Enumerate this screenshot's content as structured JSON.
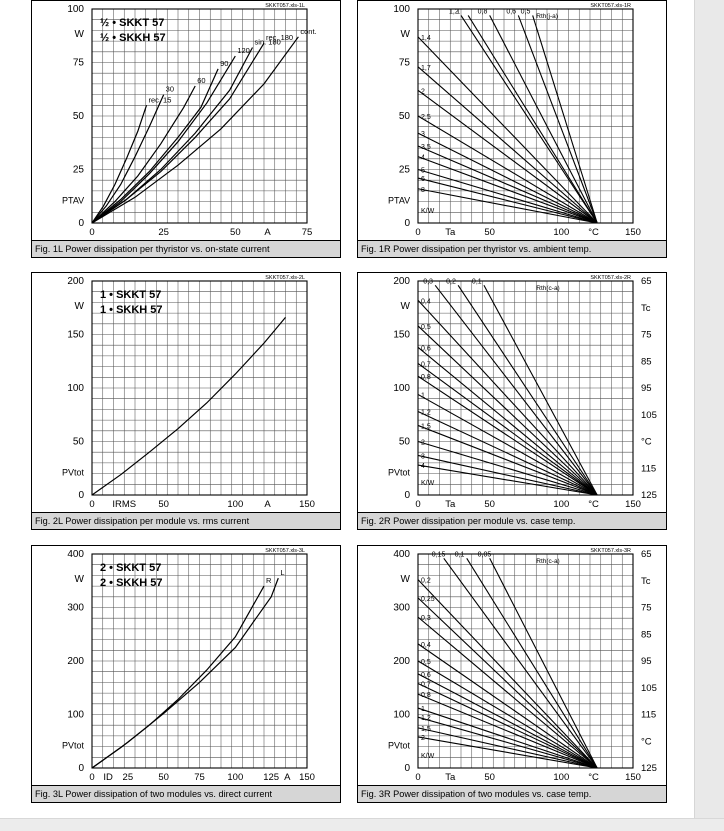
{
  "panels": [
    {
      "id": "1L",
      "caption": "Fig. 1L Power dissipation per thyristor vs. on-state current",
      "code": "SKKT057.xls-1L",
      "legend": [
        "½ • SKKT 57",
        "½ • SKKH 57"
      ],
      "chart_data": {
        "type": "line",
        "xlim": [
          0,
          75
        ],
        "ylim": [
          0,
          100
        ],
        "xticks": [
          "0",
          "25",
          "50",
          "A",
          "75"
        ],
        "yticks": [
          "0",
          "25",
          "50",
          "75",
          "W",
          "100"
        ],
        "xlabel": "ITAV",
        "ylabel": "PTAV",
        "series": [
          {
            "name": "rec. 15",
            "x": [
              0,
              4,
              8,
              12,
              16,
              19
            ],
            "y": [
              0,
              8,
              18,
              30,
              43,
              55
            ]
          },
          {
            "name": "30",
            "x": [
              0,
              5,
              10,
              15,
              20,
              25
            ],
            "y": [
              0,
              8,
              18,
              31,
              45,
              60
            ]
          },
          {
            "name": "60",
            "x": [
              0,
              8,
              16,
              24,
              32,
              36
            ],
            "y": [
              0,
              10,
              22,
              37,
              54,
              64
            ]
          },
          {
            "name": "90",
            "x": [
              0,
              10,
              20,
              30,
              38,
              44
            ],
            "y": [
              0,
              11,
              24,
              40,
              54,
              72
            ]
          },
          {
            "name": "120",
            "x": [
              0,
              10,
              20,
              30,
              40,
              50
            ],
            "y": [
              0,
              10,
              23,
              38,
              56,
              78
            ]
          },
          {
            "name": "sin. 180",
            "x": [
              0,
              12,
              24,
              36,
              48,
              56
            ],
            "y": [
              0,
              11,
              25,
              42,
              62,
              82
            ]
          },
          {
            "name": "rec. 180",
            "x": [
              0,
              12,
              24,
              36,
              48,
              60
            ],
            "y": [
              0,
              11,
              24,
              40,
              58,
              84
            ]
          },
          {
            "name": "cont.",
            "x": [
              0,
              15,
              30,
              45,
              60,
              72
            ],
            "y": [
              0,
              12,
              27,
              44,
              65,
              87
            ]
          }
        ]
      }
    },
    {
      "id": "1R",
      "caption": "Fig. 1R Power dissipation per thyristor vs. ambient temp.",
      "code": "SKKT057.xls-1R",
      "chart_data": {
        "type": "line",
        "xlim": [
          0,
          150
        ],
        "ylim": [
          0,
          100
        ],
        "xticks": [
          "0",
          "Ta",
          "50",
          "100",
          "°C",
          "150"
        ],
        "yticks": [
          "0",
          "25",
          "50",
          "75",
          "W",
          "100"
        ],
        "ylabel": "PTAV",
        "resistance_title": "Rth(j-a)",
        "unit_label": "K/W",
        "resistances": [
          "1,2",
          "1",
          "0,8",
          "0,6",
          "0,5",
          "1,4",
          "1,7",
          "2",
          "2,5",
          "3",
          "3,5",
          "4",
          "5",
          "6",
          "8"
        ],
        "lines": [
          {
            "label": "1,2",
            "y0": 97,
            "x_end": 30
          },
          {
            "label": "1",
            "y0": 97,
            "x_end": 35
          },
          {
            "label": "0,8",
            "y0": 97,
            "x_end": 50
          },
          {
            "label": "0,6",
            "y0": 97,
            "x_end": 70
          },
          {
            "label": "0,5",
            "y0": 97,
            "x_end": 80
          },
          {
            "label": "1,4",
            "y0": 87
          },
          {
            "label": "1,7",
            "y0": 73
          },
          {
            "label": "2",
            "y0": 62
          },
          {
            "label": "2,5",
            "y0": 50
          },
          {
            "label": "3",
            "y0": 42
          },
          {
            "label": "3,5",
            "y0": 36
          },
          {
            "label": "4",
            "y0": 31
          },
          {
            "label": "5",
            "y0": 25
          },
          {
            "label": "6",
            "y0": 21
          },
          {
            "label": "8",
            "y0": 16
          }
        ],
        "converge_x": 125
      }
    },
    {
      "id": "2L",
      "caption": "Fig. 2L Power dissipation per module vs. rms current",
      "code": "SKKT057.xls-2L",
      "legend": [
        "1 • SKKT 57",
        "1 • SKKH 57"
      ],
      "chart_data": {
        "type": "line",
        "xlim": [
          0,
          150
        ],
        "ylim": [
          0,
          200
        ],
        "xticks": [
          "0",
          "IRMS",
          "50",
          "100",
          "A",
          "150"
        ],
        "yticks": [
          "0",
          "50",
          "100",
          "150",
          "W",
          "200"
        ],
        "ylabel": "PVtot",
        "series": [
          {
            "name": "",
            "x": [
              0,
              20,
              40,
              60,
              80,
              100,
              120,
              135
            ],
            "y": [
              0,
              19,
              40,
              62,
              86,
              113,
              142,
              166
            ]
          }
        ]
      }
    },
    {
      "id": "2R",
      "caption": "Fig. 2R Power dissipation per module vs. case temp.",
      "code": "SKKT057.xls-2R",
      "chart_data": {
        "type": "line",
        "xlim": [
          0,
          150
        ],
        "ylim": [
          0,
          200
        ],
        "xticks": [
          "0",
          "Ta",
          "50",
          "100",
          "°C",
          "150"
        ],
        "yticks": [
          "0",
          "50",
          "100",
          "150",
          "W",
          "200"
        ],
        "ylabel": "PVtot",
        "y2ticks": [
          "65",
          "Tc",
          "75",
          "85",
          "95",
          "105",
          "°C",
          "115",
          "125"
        ],
        "resistance_title": "Rth(c-a)",
        "unit_label": "K/W",
        "lines": [
          {
            "label": "0,3",
            "y0": 196,
            "x_end": 12
          },
          {
            "label": "0,2",
            "y0": 196,
            "x_end": 28
          },
          {
            "label": "0,1",
            "y0": 196,
            "x_end": 46
          },
          {
            "label": "0,4",
            "y0": 182
          },
          {
            "label": "0,5",
            "y0": 158
          },
          {
            "label": "0,6",
            "y0": 138
          },
          {
            "label": "0,7",
            "y0": 123
          },
          {
            "label": "0,8",
            "y0": 111
          },
          {
            "label": "1",
            "y0": 94
          },
          {
            "label": "1,2",
            "y0": 78
          },
          {
            "label": "1,5",
            "y0": 65
          },
          {
            "label": "2",
            "y0": 50
          },
          {
            "label": "3",
            "y0": 37
          },
          {
            "label": "4",
            "y0": 28
          }
        ],
        "converge_x": 125
      }
    },
    {
      "id": "3L",
      "caption": "Fig. 3L Power dissipation of two modules vs. direct current",
      "code": "SKKT057.xls-3L",
      "legend": [
        "2 • SKKT 57",
        "2 • SKKH 57"
      ],
      "chart_data": {
        "type": "line",
        "xlim": [
          0,
          150
        ],
        "ylim": [
          0,
          400
        ],
        "xticks": [
          "0",
          "ID",
          "25",
          "50",
          "75",
          "100",
          "125",
          "A",
          "150"
        ],
        "yticks": [
          "0",
          "100",
          "200",
          "300",
          "W",
          "400"
        ],
        "ylabel": "PVtot",
        "series": [
          {
            "name": "R",
            "x": [
              0,
              20,
              40,
              60,
              80,
              100,
              120
            ],
            "y": [
              0,
              38,
              80,
              128,
              183,
              245,
              340
            ]
          },
          {
            "name": "L",
            "x": [
              0,
              25,
              50,
              75,
              100,
              125,
              130
            ],
            "y": [
              0,
              48,
              102,
              160,
              225,
              320,
              355
            ]
          }
        ]
      }
    },
    {
      "id": "3R",
      "caption": "Fig. 3R Power dissipation of two modules vs. case temp.",
      "code": "SKKT057.xls-3R",
      "chart_data": {
        "type": "line",
        "xlim": [
          0,
          150
        ],
        "ylim": [
          0,
          400
        ],
        "xticks": [
          "0",
          "Ta",
          "50",
          "100",
          "°C",
          "150"
        ],
        "yticks": [
          "0",
          "100",
          "200",
          "300",
          "W",
          "400"
        ],
        "ylabel": "PVtot",
        "y2ticks": [
          "65",
          "Tc",
          "75",
          "85",
          "95",
          "105",
          "115",
          "°C",
          "125"
        ],
        "resistance_title": "Rth(c-a)",
        "unit_label": "K/W",
        "lines": [
          {
            "label": "0,15",
            "y0": 392,
            "x_end": 18
          },
          {
            "label": "0,1",
            "y0": 392,
            "x_end": 34
          },
          {
            "label": "0,05",
            "y0": 392,
            "x_end": 50
          },
          {
            "label": "0,2",
            "y0": 352
          },
          {
            "label": "0,25",
            "y0": 318
          },
          {
            "label": "0,3",
            "y0": 282
          },
          {
            "label": "0,4",
            "y0": 232
          },
          {
            "label": "0,5",
            "y0": 200
          },
          {
            "label": "0,6",
            "y0": 176
          },
          {
            "label": "0,7",
            "y0": 158
          },
          {
            "label": "0,8",
            "y0": 138
          },
          {
            "label": "1",
            "y0": 112
          },
          {
            "label": "1,2",
            "y0": 95
          },
          {
            "label": "1,5",
            "y0": 75
          },
          {
            "label": "2",
            "y0": 58
          }
        ],
        "converge_x": 125
      }
    }
  ]
}
